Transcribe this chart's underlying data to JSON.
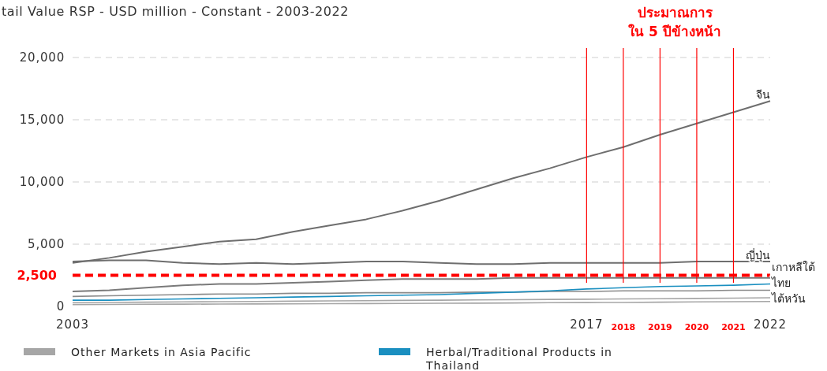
{
  "chart_data": {
    "type": "line",
    "title": "tail Value RSP - USD million - Constant - 2003-2022",
    "x": [
      2003,
      2004,
      2005,
      2006,
      2007,
      2008,
      2009,
      2010,
      2011,
      2012,
      2013,
      2014,
      2015,
      2016,
      2017,
      2018,
      2019,
      2020,
      2021,
      2022
    ],
    "xlim": [
      2003,
      2022
    ],
    "xticks": [
      2003,
      2017,
      2022
    ],
    "ylim": [
      0,
      20000
    ],
    "yticks": [
      {
        "value": 0,
        "label": "0"
      },
      {
        "value": 5000,
        "label": "5,000"
      },
      {
        "value": 10000,
        "label": "10,000"
      },
      {
        "value": 15000,
        "label": "15,000"
      },
      {
        "value": 20000,
        "label": "20,000"
      }
    ],
    "grid": "y",
    "legend": "bottom",
    "line_style": "solid",
    "marker": "none",
    "series": [
      {
        "color": "#6e6e6e",
        "values": [
          3500,
          3900,
          4400,
          4800,
          5200,
          5400,
          6000,
          6500,
          7000,
          7700,
          8500,
          9400,
          10300,
          11100,
          12000,
          12800,
          13800,
          14700,
          15600,
          16500
        ]
      },
      {
        "color": "#6e6e6e",
        "values": [
          3600,
          3700,
          3700,
          3500,
          3400,
          3500,
          3400,
          3500,
          3600,
          3600,
          3500,
          3400,
          3400,
          3500,
          3500,
          3500,
          3500,
          3600,
          3600,
          3600
        ]
      },
      {
        "color": "#7a7a7a",
        "values": [
          1200,
          1300,
          1500,
          1700,
          1800,
          1800,
          1900,
          2000,
          2100,
          2200,
          2200,
          2200,
          2300,
          2300,
          2300,
          2300,
          2300,
          2300,
          2300,
          2300
        ]
      },
      {
        "color": "#8a8a8a",
        "values": [
          800,
          850,
          900,
          950,
          1000,
          1000,
          1050,
          1050,
          1100,
          1100,
          1100,
          1150,
          1150,
          1200,
          1200,
          1250,
          1250,
          1250,
          1300,
          1300
        ]
      },
      {
        "color": "#a6a6a6",
        "values": [
          300,
          320,
          340,
          360,
          380,
          400,
          420,
          440,
          460,
          480,
          500,
          520,
          540,
          560,
          580,
          600,
          620,
          640,
          660,
          700
        ]
      },
      {
        "name": "Other Markets in Asia Pacific",
        "color": "#a6a6a6",
        "values": [
          150,
          160,
          170,
          180,
          190,
          200,
          210,
          220,
          230,
          240,
          250,
          260,
          280,
          300,
          310,
          320,
          340,
          360,
          380,
          400
        ]
      },
      {
        "name": "Herbal/Traditional Products in Thailand",
        "color": "#1a8fc0",
        "values": [
          500,
          500,
          550,
          600,
          650,
          700,
          750,
          800,
          850,
          900,
          950,
          1050,
          1150,
          1250,
          1400,
          1500,
          1600,
          1650,
          1700,
          1800
        ]
      }
    ],
    "ref_lines": [
      {
        "axis": "y",
        "value": 2500,
        "label": "2,500",
        "color": "#ff0000",
        "line_style": "dashed"
      },
      {
        "axis": "x",
        "value": 2017,
        "label": null,
        "color": "#ff0000",
        "line_style": "solid"
      },
      {
        "axis": "x",
        "value": 2018,
        "label": "2018",
        "color": "#ff0000",
        "line_style": "solid"
      },
      {
        "axis": "x",
        "value": 2019,
        "label": "2019",
        "color": "#ff0000",
        "line_style": "solid"
      },
      {
        "axis": "x",
        "value": 2020,
        "label": "2020",
        "color": "#ff0000",
        "line_style": "solid"
      },
      {
        "axis": "x",
        "value": 2021,
        "label": "2021",
        "color": "#ff0000",
        "line_style": "solid"
      }
    ],
    "annotations": [
      "ประมาณการ\nใน 5 ปีข้างหน้า",
      {
        "text": "จีน",
        "y": 16500
      },
      {
        "text": "ญี่ปุ่น",
        "y": 3600
      },
      "เกาหลีใต้",
      "ไทย",
      "ไต้หวัน"
    ]
  }
}
